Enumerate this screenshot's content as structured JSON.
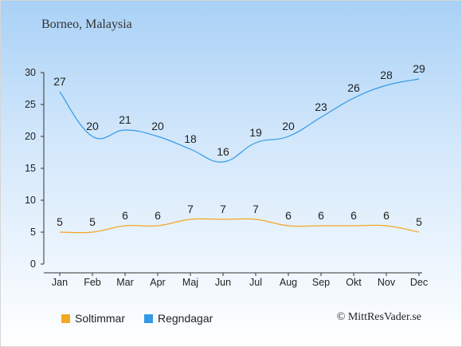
{
  "title": "Borneo, Malaysia",
  "copyright": "© MittResVader.se",
  "chart_data": {
    "type": "line",
    "categories": [
      "Jan",
      "Feb",
      "Mar",
      "Apr",
      "Maj",
      "Jun",
      "Jul",
      "Aug",
      "Sep",
      "Okt",
      "Nov",
      "Dec"
    ],
    "series": [
      {
        "name": "Soltimmar",
        "color": "#f5a623",
        "values": [
          5,
          5,
          6,
          6,
          7,
          7,
          7,
          6,
          6,
          6,
          6,
          5
        ]
      },
      {
        "name": "Regndagar",
        "color": "#3399e6",
        "values": [
          27,
          20,
          21,
          20,
          18,
          16,
          19,
          20,
          23,
          26,
          28,
          29
        ]
      }
    ],
    "ylim": [
      0,
      30
    ],
    "yticks": [
      0,
      5,
      10,
      15,
      20,
      25,
      30
    ],
    "grid": false,
    "legend": "bottom-left"
  }
}
